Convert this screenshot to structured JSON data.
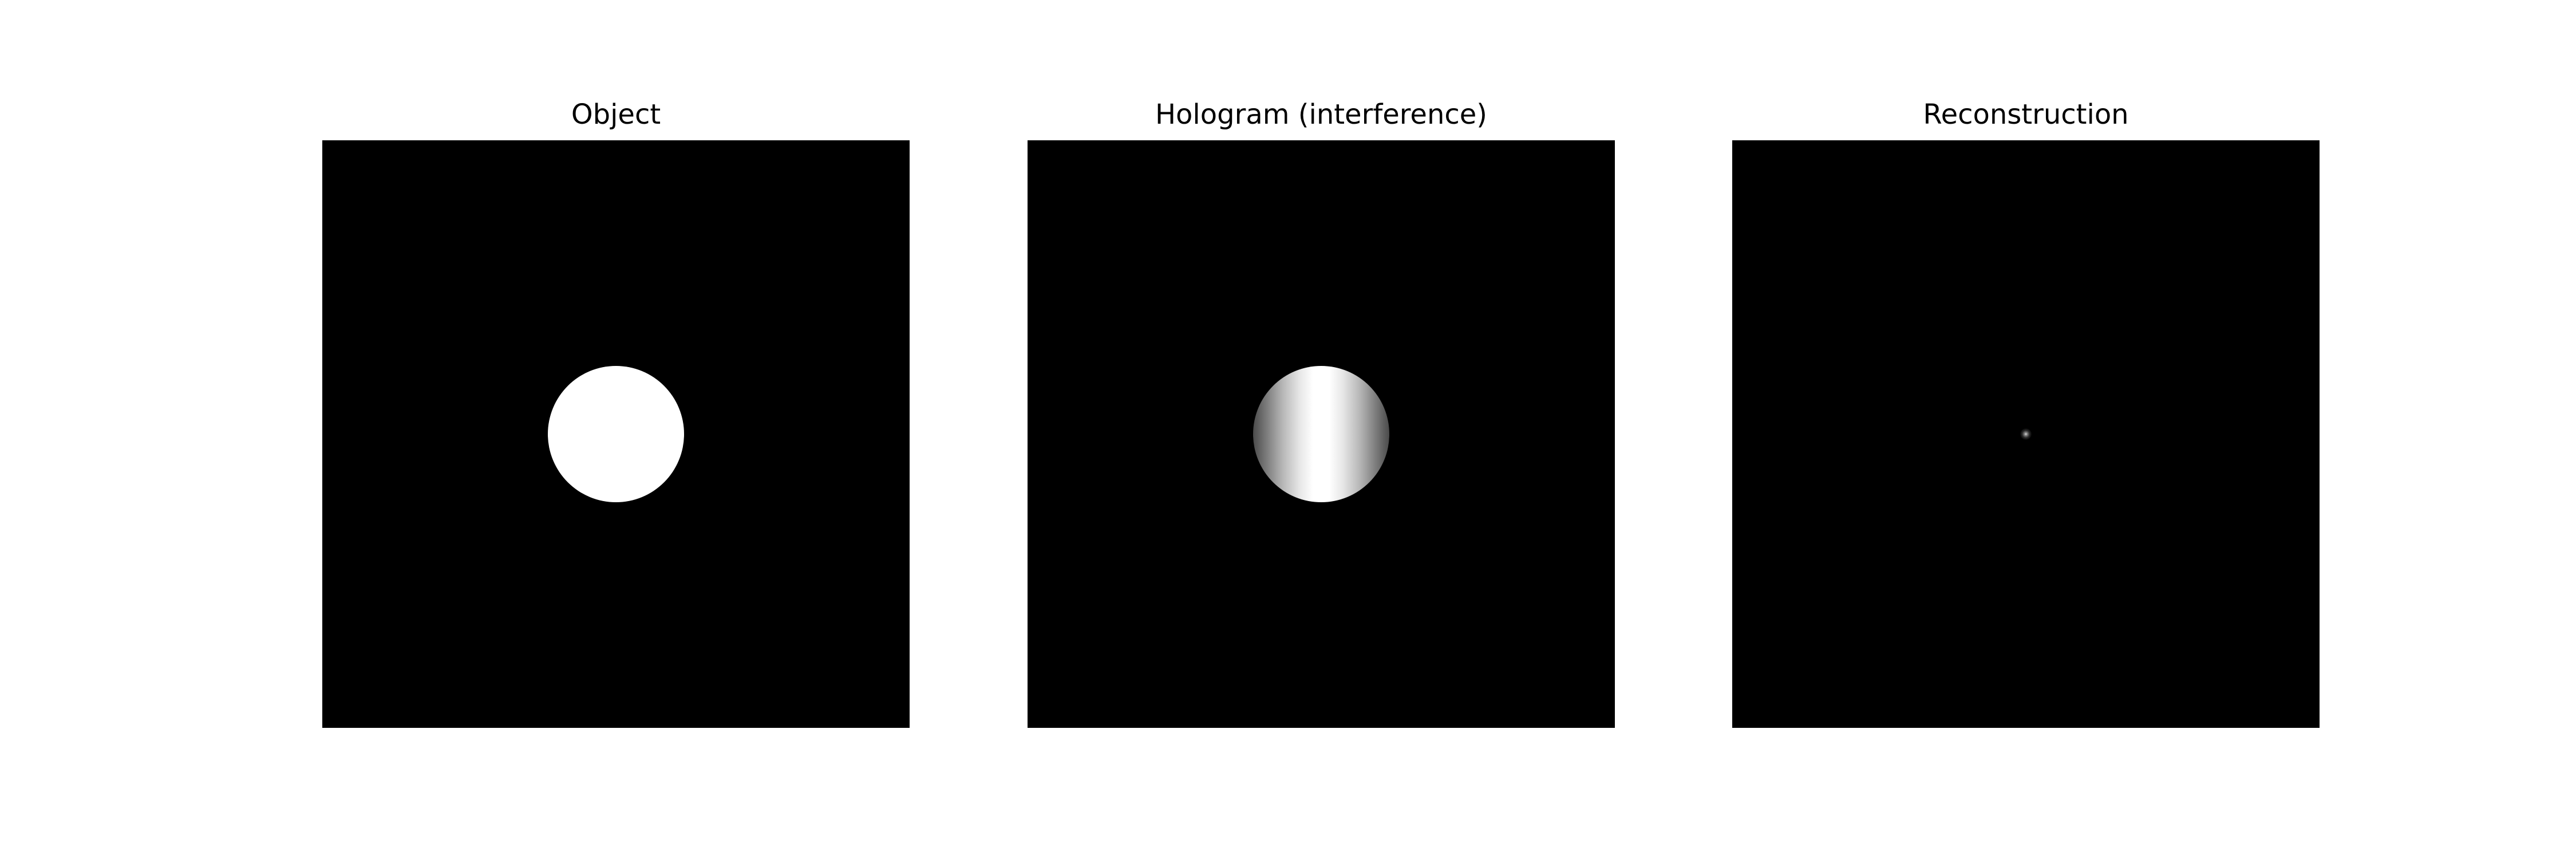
{
  "figure": {
    "panels": [
      {
        "id": "object",
        "title": "Object",
        "fill_color": "#ffffff"
      },
      {
        "id": "hologram",
        "title": "Hologram (interference)",
        "fill_color": "#ffffff"
      },
      {
        "id": "reconstruction",
        "title": "Reconstruction",
        "fill_color": "#d8d8d8"
      }
    ],
    "background_color": "#000000"
  }
}
